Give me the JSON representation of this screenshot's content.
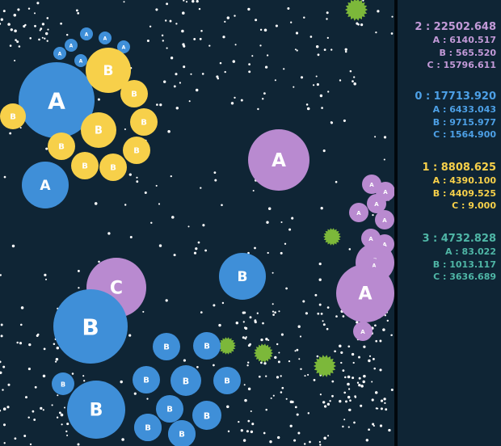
{
  "colors": {
    "background": "#0f2535",
    "blue": "#3f8fd8",
    "yellow": "#f7d04a",
    "purple": "#b98ad0",
    "teal": "#4fb6a6",
    "virus": "#7cb83a",
    "food": "#ffffff"
  },
  "scoreboard": [
    {
      "id": "2",
      "total": "22502.648",
      "color": "#c39ad8",
      "head": "2 : 22502.648",
      "rows": [
        {
          "label": "A : 6140.517"
        },
        {
          "label": "B : 565.520"
        },
        {
          "label": "C : 15796.611"
        }
      ]
    },
    {
      "id": "0",
      "total": "17713.920",
      "color": "#4da0e6",
      "head": "0 : 17713.920",
      "rows": [
        {
          "label": "A : 6433.043"
        },
        {
          "label": "B : 9715.977"
        },
        {
          "label": "C : 1564.900"
        }
      ]
    },
    {
      "id": "1",
      "total": "8808.625",
      "color": "#f7d04a",
      "head": "1 : 8808.625",
      "rows": [
        {
          "label": "A : 4390.100"
        },
        {
          "label": "B : 4409.525"
        },
        {
          "label": "C : 9.000"
        }
      ]
    },
    {
      "id": "3",
      "total": "4732.828",
      "color": "#4fb6a6",
      "head": "3 : 4732.828",
      "rows": [
        {
          "label": "A : 83.022"
        },
        {
          "label": "B : 1013.117"
        },
        {
          "label": "C : 3636.689"
        }
      ]
    }
  ],
  "cells": [
    {
      "team": "blue",
      "label": "A"
    },
    {
      "team": "blue",
      "label": "A"
    },
    {
      "team": "blue",
      "label": "A"
    },
    {
      "team": "blue",
      "label": "A"
    },
    {
      "team": "blue",
      "label": "A"
    },
    {
      "team": "blue",
      "label": "A"
    },
    {
      "team": "blue",
      "label": "A"
    },
    {
      "team": "blue",
      "label": "A"
    },
    {
      "team": "yellow",
      "label": "B"
    },
    {
      "team": "yellow",
      "label": "B"
    },
    {
      "team": "yellow",
      "label": "B"
    },
    {
      "team": "yellow",
      "label": "B"
    },
    {
      "team": "yellow",
      "label": "B"
    },
    {
      "team": "yellow",
      "label": "B"
    },
    {
      "team": "yellow",
      "label": "B"
    },
    {
      "team": "yellow",
      "label": "B"
    },
    {
      "team": "yellow",
      "label": "B"
    },
    {
      "team": "purple",
      "label": "A"
    },
    {
      "team": "purple",
      "label": "C"
    },
    {
      "team": "blue",
      "label": "B"
    },
    {
      "team": "blue",
      "label": "B"
    },
    {
      "team": "purple",
      "label": "A"
    },
    {
      "team": "purple",
      "label": "A"
    },
    {
      "team": "purple",
      "label": "A"
    },
    {
      "team": "purple",
      "label": "A"
    },
    {
      "team": "purple",
      "label": "A"
    },
    {
      "team": "purple",
      "label": "A"
    },
    {
      "team": "purple",
      "label": "A"
    },
    {
      "team": "purple",
      "label": "A"
    },
    {
      "team": "purple",
      "label": "A"
    },
    {
      "team": "purple",
      "label": "A"
    },
    {
      "team": "purple",
      "label": "A"
    },
    {
      "team": "blue",
      "label": "B"
    },
    {
      "team": "blue",
      "label": "B"
    },
    {
      "team": "blue",
      "label": "B"
    },
    {
      "team": "blue",
      "label": "B"
    },
    {
      "team": "blue",
      "label": "B"
    },
    {
      "team": "blue",
      "label": "B"
    },
    {
      "team": "blue",
      "label": "B"
    },
    {
      "team": "blue",
      "label": "B"
    },
    {
      "team": "blue",
      "label": "B"
    },
    {
      "team": "blue",
      "label": "B"
    },
    {
      "team": "blue",
      "label": "B"
    },
    {
      "team": "blue",
      "label": "B"
    },
    {
      "team": "blue",
      "label": "B"
    }
  ]
}
